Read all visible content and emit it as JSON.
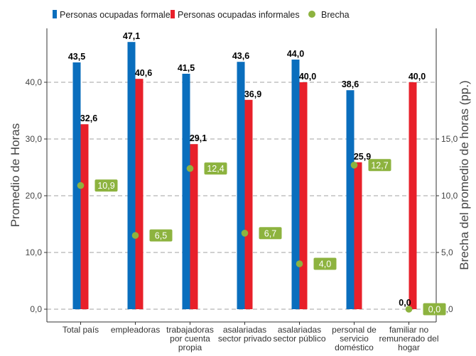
{
  "chart_data": {
    "type": "bar",
    "categories": [
      [
        "Total país"
      ],
      [
        "empleadoras"
      ],
      [
        "trabajadoras",
        "por cuenta",
        "propia"
      ],
      [
        "asalariadas",
        "sector privado"
      ],
      [
        "asalariadas",
        "sector público"
      ],
      [
        "personal de",
        "servicio",
        "doméstico"
      ],
      [
        "familiar no",
        "remunerado del",
        "hogar"
      ]
    ],
    "series": [
      {
        "name": "Personas ocupadas formales",
        "color": "#0a6ebd",
        "values": [
          43.5,
          47.1,
          41.5,
          43.6,
          44.0,
          38.6,
          0.0
        ],
        "labels": [
          "43,5",
          "47,1",
          "41,5",
          "43,6",
          "44,0",
          "38,6",
          "0,0"
        ]
      },
      {
        "name": "Personas ocupadas informales",
        "color": "#e8202a",
        "values": [
          32.6,
          40.6,
          29.1,
          36.9,
          40.0,
          25.9,
          40.0
        ],
        "labels": [
          "32,6",
          "40,6",
          "29,1",
          "36,9",
          "40,0",
          "25,9",
          "40,0"
        ]
      },
      {
        "name": "Brecha",
        "color": "#8db33f",
        "axis": "right",
        "values": [
          10.9,
          6.5,
          12.4,
          6.7,
          4.0,
          12.7,
          0.0
        ],
        "labels": [
          "10,9",
          "6,5",
          "12,4",
          "6,7",
          "4,0",
          "12,7",
          "0,0"
        ]
      }
    ],
    "ylabel": "Promedio de Horas",
    "ylabel_right": "Brecha del promedio de horas (pp.)",
    "ylim": [
      0,
      50
    ],
    "ylim_right": [
      0,
      20
    ],
    "yticks": [
      0,
      10,
      20,
      30,
      40
    ],
    "yticks_labels": [
      "0,0",
      "10,0",
      "20,0",
      "30,0",
      "40,0"
    ],
    "yticks_right": [
      0,
      5,
      10,
      15
    ],
    "yticks_right_labels": [
      "0,0",
      "5,0",
      "10,0",
      "15,0"
    ],
    "grid": "horizontal dashed",
    "legend_position": "top-left"
  }
}
